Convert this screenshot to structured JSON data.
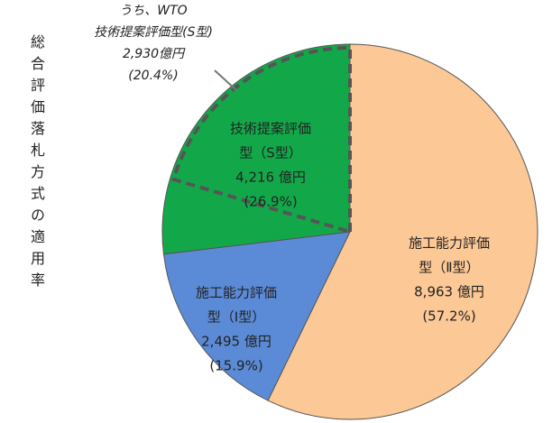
{
  "chart_data": {
    "type": "pie",
    "y_label": "総合評価落札方式の適用率",
    "categories": [
      [
        "施工能力評価",
        "型（Ⅱ型）"
      ],
      [
        "施工能力評価",
        "型（Ⅰ型）"
      ],
      [
        "技術提案評価",
        "型（S型）"
      ]
    ],
    "values": [
      57.2,
      15.9,
      26.9
    ],
    "amount_labels": [
      "8,963 億円",
      "2,495 億円",
      "4,216 億円"
    ],
    "value_labels": [
      "(57.2%)",
      "(15.9%)",
      "(26.9%)"
    ],
    "colors": [
      "#fcc896",
      "#5b8bd6",
      "#12a84a"
    ],
    "subset": {
      "lines": [
        "うち、WTO",
        "技術提案評価型(S型)",
        "2,930億円"
      ],
      "value": 20.4,
      "value_label": "(20.4%)"
    }
  }
}
